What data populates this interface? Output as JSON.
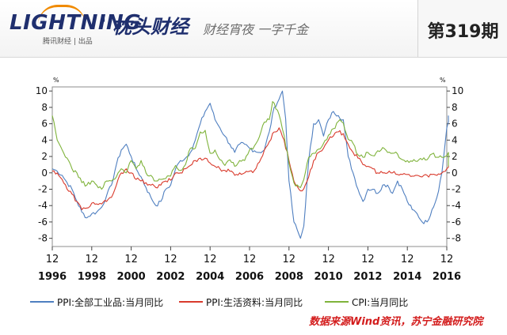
{
  "header": {
    "brand": "LIGHTNING",
    "brand_sub": "腾讯财经 | 出品",
    "separator": "·",
    "column_name": "枕头财经",
    "slogan": "财经宵夜 一字千金",
    "issue": "第319期"
  },
  "colors": {
    "ppi_all": "#4f7fc0",
    "ppi_consumer": "#d93a2c",
    "cpi": "#7fb33b",
    "brand_navy": "#1f2f6e",
    "source_red": "#d31c1c"
  },
  "chart_data": {
    "type": "line",
    "y_unit_left": "%",
    "y_unit_right": "%",
    "ylim": [
      -9,
      10.5
    ],
    "y_ticks": [
      -8,
      -6,
      -4,
      -2,
      0,
      2,
      4,
      6,
      8,
      10
    ],
    "y_tick_labels": [
      "-8",
      "-6",
      "-4",
      "-2",
      "0",
      "2",
      "4",
      "6",
      "8",
      "10"
    ],
    "xlim": [
      "1996-12",
      "2016-12"
    ],
    "x_ticks": [
      {
        "x": "1996-12",
        "month": "12",
        "year": "1996"
      },
      {
        "x": "1998-12",
        "month": "12",
        "year": "1998"
      },
      {
        "x": "2000-12",
        "month": "12",
        "year": "2000"
      },
      {
        "x": "2002-12",
        "month": "12",
        "year": "2002"
      },
      {
        "x": "2004-12",
        "month": "12",
        "year": "2004"
      },
      {
        "x": "2006-12",
        "month": "12",
        "year": "2006"
      },
      {
        "x": "2008-12",
        "month": "12",
        "year": "2008"
      },
      {
        "x": "2010-12",
        "month": "12",
        "year": "2010"
      },
      {
        "x": "2012-12",
        "month": "12",
        "year": "2012"
      },
      {
        "x": "2014-12",
        "month": "12",
        "year": "2014"
      },
      {
        "x": "2016-12",
        "month": "12",
        "year": "2016"
      }
    ],
    "grid": true,
    "legend_position": "bottom",
    "series": [
      {
        "name": "PPI:全部工业品:当月同比",
        "color": "#4f7fc0",
        "points": [
          [
            "1996-12",
            0.5
          ],
          [
            "1997-03",
            0.2
          ],
          [
            "1997-06",
            -0.3
          ],
          [
            "1997-09",
            -1.2
          ],
          [
            "1997-12",
            -2.0
          ],
          [
            "1998-03",
            -3.5
          ],
          [
            "1998-06",
            -4.8
          ],
          [
            "1998-09",
            -5.5
          ],
          [
            "1998-12",
            -5.0
          ],
          [
            "1999-03",
            -4.8
          ],
          [
            "1999-06",
            -4.2
          ],
          [
            "1999-09",
            -2.8
          ],
          [
            "1999-12",
            -1.5
          ],
          [
            "2000-03",
            1.0
          ],
          [
            "2000-06",
            2.8
          ],
          [
            "2000-09",
            3.5
          ],
          [
            "2000-12",
            2.0
          ],
          [
            "2001-03",
            0.5
          ],
          [
            "2001-06",
            -0.5
          ],
          [
            "2001-09",
            -1.8
          ],
          [
            "2001-12",
            -3.0
          ],
          [
            "2002-03",
            -4.0
          ],
          [
            "2002-06",
            -3.5
          ],
          [
            "2002-09",
            -2.0
          ],
          [
            "2002-12",
            -1.5
          ],
          [
            "2003-03",
            0.5
          ],
          [
            "2003-06",
            1.5
          ],
          [
            "2003-09",
            1.8
          ],
          [
            "2003-12",
            2.5
          ],
          [
            "2004-03",
            4.0
          ],
          [
            "2004-06",
            6.0
          ],
          [
            "2004-09",
            7.5
          ],
          [
            "2004-12",
            8.5
          ],
          [
            "2005-03",
            6.5
          ],
          [
            "2005-06",
            5.5
          ],
          [
            "2005-09",
            4.5
          ],
          [
            "2005-12",
            3.5
          ],
          [
            "2006-03",
            2.5
          ],
          [
            "2006-06",
            3.5
          ],
          [
            "2006-09",
            3.5
          ],
          [
            "2006-12",
            3.0
          ],
          [
            "2007-03",
            2.7
          ],
          [
            "2007-06",
            2.5
          ],
          [
            "2007-09",
            2.8
          ],
          [
            "2007-12",
            5.0
          ],
          [
            "2008-03",
            8.0
          ],
          [
            "2008-06",
            9.0
          ],
          [
            "2008-08",
            10.0
          ],
          [
            "2008-10",
            6.6
          ],
          [
            "2008-12",
            -1.0
          ],
          [
            "2009-03",
            -6.0
          ],
          [
            "2009-06",
            -7.5
          ],
          [
            "2009-07",
            -8.0
          ],
          [
            "2009-09",
            -6.5
          ],
          [
            "2009-12",
            1.5
          ],
          [
            "2010-03",
            6.0
          ],
          [
            "2010-06",
            6.5
          ],
          [
            "2010-09",
            4.5
          ],
          [
            "2010-12",
            6.5
          ],
          [
            "2011-03",
            7.5
          ],
          [
            "2011-06",
            7.0
          ],
          [
            "2011-09",
            6.5
          ],
          [
            "2011-12",
            2.0
          ],
          [
            "2012-03",
            0.0
          ],
          [
            "2012-06",
            -2.0
          ],
          [
            "2012-09",
            -3.5
          ],
          [
            "2012-12",
            -2.0
          ],
          [
            "2013-03",
            -2.0
          ],
          [
            "2013-06",
            -2.5
          ],
          [
            "2013-09",
            -1.5
          ],
          [
            "2013-12",
            -1.5
          ],
          [
            "2014-03",
            -2.5
          ],
          [
            "2014-06",
            -1.0
          ],
          [
            "2014-09",
            -2.0
          ],
          [
            "2014-12",
            -3.5
          ],
          [
            "2015-03",
            -4.5
          ],
          [
            "2015-06",
            -5.0
          ],
          [
            "2015-09",
            -6.0
          ],
          [
            "2015-12",
            -6.0
          ],
          [
            "2016-03",
            -4.5
          ],
          [
            "2016-06",
            -3.0
          ],
          [
            "2016-09",
            0.0
          ],
          [
            "2016-12",
            5.5
          ],
          [
            "2017-02",
            7.0
          ]
        ]
      },
      {
        "name": "PPI:生活资料:当月同比",
        "color": "#d93a2c",
        "points": [
          [
            "1996-12",
            0.2
          ],
          [
            "1997-03",
            0.0
          ],
          [
            "1997-06",
            -0.8
          ],
          [
            "1997-09",
            -2.0
          ],
          [
            "1997-12",
            -2.6
          ],
          [
            "1998-03",
            -3.5
          ],
          [
            "1998-06",
            -4.5
          ],
          [
            "1998-09",
            -4.3
          ],
          [
            "1998-12",
            -3.7
          ],
          [
            "1999-03",
            -3.8
          ],
          [
            "1999-06",
            -3.8
          ],
          [
            "1999-09",
            -3.5
          ],
          [
            "1999-12",
            -3.0
          ],
          [
            "2000-03",
            -1.5
          ],
          [
            "2000-06",
            0.0
          ],
          [
            "2000-09",
            0.5
          ],
          [
            "2000-12",
            0.0
          ],
          [
            "2001-03",
            -0.8
          ],
          [
            "2001-06",
            -1.0
          ],
          [
            "2001-09",
            -1.2
          ],
          [
            "2001-12",
            -1.5
          ],
          [
            "2002-03",
            -1.8
          ],
          [
            "2002-06",
            -1.5
          ],
          [
            "2002-09",
            -1.0
          ],
          [
            "2002-12",
            -0.9
          ],
          [
            "2003-03",
            0.0
          ],
          [
            "2003-06",
            0.0
          ],
          [
            "2003-09",
            0.5
          ],
          [
            "2003-12",
            0.9
          ],
          [
            "2004-03",
            1.5
          ],
          [
            "2004-06",
            1.8
          ],
          [
            "2004-09",
            1.8
          ],
          [
            "2004-12",
            1.2
          ],
          [
            "2005-03",
            0.8
          ],
          [
            "2005-06",
            0.5
          ],
          [
            "2005-09",
            0.3
          ],
          [
            "2005-12",
            0.2
          ],
          [
            "2006-03",
            -0.3
          ],
          [
            "2006-06",
            0.0
          ],
          [
            "2006-09",
            0.0
          ],
          [
            "2006-12",
            0.2
          ],
          [
            "2007-03",
            0.3
          ],
          [
            "2007-06",
            1.3
          ],
          [
            "2007-09",
            2.8
          ],
          [
            "2007-12",
            3.8
          ],
          [
            "2008-03",
            5.0
          ],
          [
            "2008-06",
            5.5
          ],
          [
            "2008-09",
            4.0
          ],
          [
            "2008-12",
            1.5
          ],
          [
            "2009-03",
            -1.0
          ],
          [
            "2009-06",
            -2.0
          ],
          [
            "2009-08",
            -2.2
          ],
          [
            "2009-12",
            -0.5
          ],
          [
            "2010-03",
            1.5
          ],
          [
            "2010-06",
            2.5
          ],
          [
            "2010-09",
            3.0
          ],
          [
            "2010-12",
            4.0
          ],
          [
            "2011-03",
            4.5
          ],
          [
            "2011-06",
            5.0
          ],
          [
            "2011-09",
            4.8
          ],
          [
            "2011-12",
            3.5
          ],
          [
            "2012-03",
            2.5
          ],
          [
            "2012-06",
            1.8
          ],
          [
            "2012-09",
            1.0
          ],
          [
            "2012-12",
            0.8
          ],
          [
            "2013-03",
            0.5
          ],
          [
            "2013-06",
            0.0
          ],
          [
            "2013-09",
            0.0
          ],
          [
            "2013-12",
            0.0
          ],
          [
            "2014-03",
            0.0
          ],
          [
            "2014-06",
            -0.2
          ],
          [
            "2014-09",
            -0.2
          ],
          [
            "2014-12",
            -0.2
          ],
          [
            "2015-03",
            -0.4
          ],
          [
            "2015-06",
            -0.3
          ],
          [
            "2015-09",
            -0.5
          ],
          [
            "2015-12",
            -0.3
          ],
          [
            "2016-03",
            -0.2
          ],
          [
            "2016-06",
            -0.3
          ],
          [
            "2016-09",
            0.0
          ],
          [
            "2016-12",
            0.5
          ],
          [
            "2017-02",
            1.0
          ]
        ]
      },
      {
        "name": "CPI:当月同比",
        "color": "#7fb33b",
        "points": [
          [
            "1996-12",
            7.0
          ],
          [
            "1997-03",
            4.0
          ],
          [
            "1997-06",
            2.8
          ],
          [
            "1997-09",
            1.8
          ],
          [
            "1997-12",
            0.5
          ],
          [
            "1998-03",
            0.0
          ],
          [
            "1998-06",
            -1.2
          ],
          [
            "1998-09",
            -1.5
          ],
          [
            "1998-12",
            -1.0
          ],
          [
            "1999-03",
            -1.5
          ],
          [
            "1999-06",
            -2.0
          ],
          [
            "1999-09",
            -1.0
          ],
          [
            "1999-12",
            -1.0
          ],
          [
            "2000-03",
            -0.5
          ],
          [
            "2000-06",
            0.5
          ],
          [
            "2000-09",
            0.0
          ],
          [
            "2000-12",
            1.5
          ],
          [
            "2001-03",
            0.5
          ],
          [
            "2001-06",
            1.5
          ],
          [
            "2001-09",
            0.0
          ],
          [
            "2001-12",
            -0.3
          ],
          [
            "2002-03",
            -1.0
          ],
          [
            "2002-06",
            -0.8
          ],
          [
            "2002-09",
            -0.7
          ],
          [
            "2002-12",
            -0.4
          ],
          [
            "2003-03",
            0.9
          ],
          [
            "2003-06",
            0.3
          ],
          [
            "2003-09",
            1.0
          ],
          [
            "2003-12",
            3.0
          ],
          [
            "2004-03",
            3.0
          ],
          [
            "2004-06",
            5.0
          ],
          [
            "2004-09",
            5.2
          ],
          [
            "2004-12",
            2.4
          ],
          [
            "2005-03",
            2.8
          ],
          [
            "2005-06",
            1.6
          ],
          [
            "2005-09",
            0.9
          ],
          [
            "2005-12",
            1.6
          ],
          [
            "2006-03",
            0.8
          ],
          [
            "2006-06",
            1.5
          ],
          [
            "2006-09",
            1.5
          ],
          [
            "2006-12",
            2.8
          ],
          [
            "2007-03",
            3.3
          ],
          [
            "2007-06",
            4.4
          ],
          [
            "2007-09",
            6.2
          ],
          [
            "2007-12",
            6.5
          ],
          [
            "2008-02",
            8.7
          ],
          [
            "2008-06",
            7.1
          ],
          [
            "2008-09",
            4.6
          ],
          [
            "2008-12",
            1.2
          ],
          [
            "2009-03",
            -1.2
          ],
          [
            "2009-06",
            -1.7
          ],
          [
            "2009-07",
            -1.8
          ],
          [
            "2009-09",
            -0.8
          ],
          [
            "2009-12",
            1.9
          ],
          [
            "2010-03",
            2.4
          ],
          [
            "2010-06",
            2.9
          ],
          [
            "2010-09",
            3.6
          ],
          [
            "2010-12",
            4.6
          ],
          [
            "2011-03",
            5.4
          ],
          [
            "2011-07",
            6.5
          ],
          [
            "2011-09",
            6.1
          ],
          [
            "2011-12",
            4.1
          ],
          [
            "2012-03",
            3.6
          ],
          [
            "2012-06",
            2.2
          ],
          [
            "2012-09",
            1.9
          ],
          [
            "2012-12",
            2.5
          ],
          [
            "2013-03",
            2.1
          ],
          [
            "2013-06",
            2.7
          ],
          [
            "2013-09",
            3.1
          ],
          [
            "2013-12",
            2.5
          ],
          [
            "2014-03",
            2.4
          ],
          [
            "2014-06",
            2.3
          ],
          [
            "2014-09",
            1.6
          ],
          [
            "2014-12",
            1.5
          ],
          [
            "2015-03",
            1.4
          ],
          [
            "2015-06",
            1.4
          ],
          [
            "2015-09",
            1.6
          ],
          [
            "2015-12",
            1.6
          ],
          [
            "2016-03",
            2.3
          ],
          [
            "2016-06",
            1.9
          ],
          [
            "2016-09",
            1.9
          ],
          [
            "2016-12",
            2.1
          ],
          [
            "2017-01",
            2.5
          ],
          [
            "2017-02",
            0.8
          ]
        ]
      }
    ]
  },
  "source_note": "数据来源Wind资讯，苏宁金融研究院"
}
